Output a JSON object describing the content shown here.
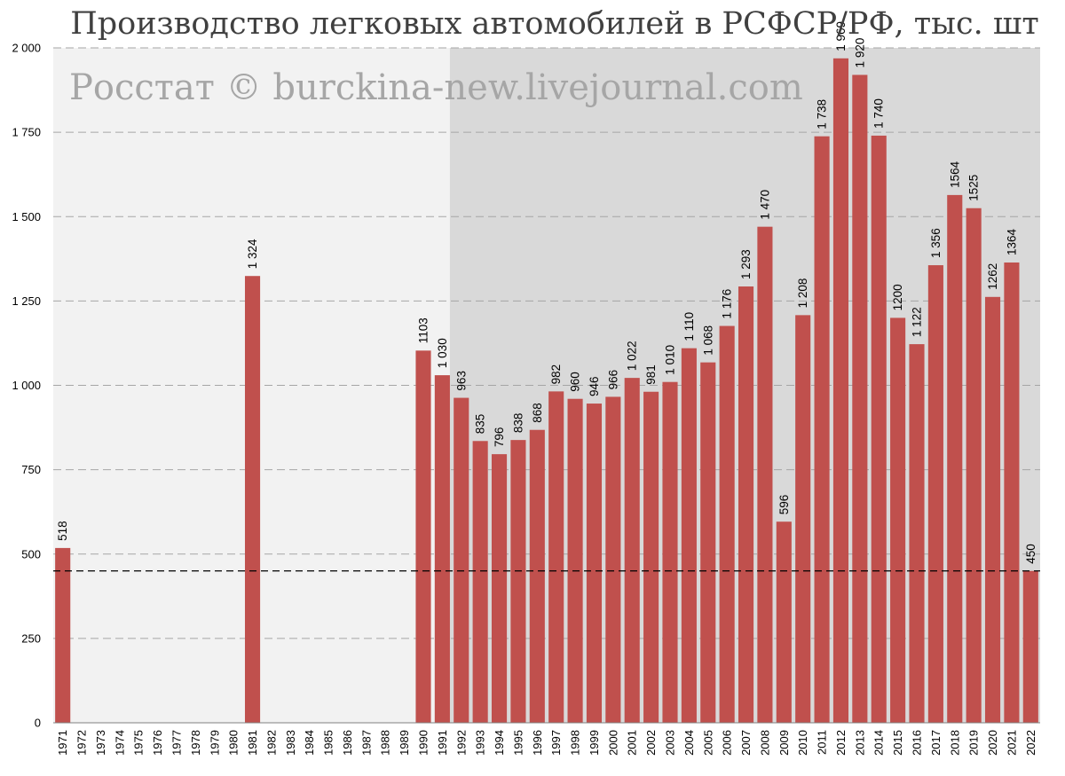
{
  "chart_data": {
    "type": "bar",
    "title": "Производство легковых автомобилей в РСФСР/РФ, тыс. шт",
    "watermark": "Росстат © burckina-new.livejournal.com",
    "xlabel": "",
    "ylabel": "",
    "ylim": [
      0,
      2000
    ],
    "yticks": [
      0,
      250,
      500,
      750,
      1000,
      1250,
      1500,
      1750,
      2000
    ],
    "ytick_labels": [
      "0",
      "250",
      "500",
      "750",
      "1 000",
      "1 250",
      "1 500",
      "1 750",
      "2 000"
    ],
    "categories": [
      "1971",
      "1972",
      "1973",
      "1974",
      "1975",
      "1976",
      "1977",
      "1978",
      "1979",
      "1980",
      "1981",
      "1982",
      "1983",
      "1984",
      "1985",
      "1986",
      "1987",
      "1988",
      "1989",
      "1990",
      "1991",
      "1992",
      "1993",
      "1994",
      "1995",
      "1996",
      "1997",
      "1998",
      "1999",
      "2000",
      "2001",
      "2002",
      "2003",
      "2004",
      "2005",
      "2006",
      "2007",
      "2008",
      "2009",
      "2010",
      "2011",
      "2012",
      "2013",
      "2014",
      "2015",
      "2016",
      "2017",
      "2018",
      "2019",
      "2020",
      "2021",
      "2022"
    ],
    "values": [
      518,
      null,
      null,
      null,
      null,
      null,
      null,
      null,
      null,
      null,
      1324,
      null,
      null,
      null,
      null,
      null,
      null,
      null,
      null,
      1103,
      1030,
      963,
      835,
      796,
      838,
      868,
      982,
      960,
      946,
      966,
      1022,
      981,
      1010,
      1110,
      1068,
      1176,
      1293,
      1470,
      596,
      1208,
      1738,
      1969,
      1920,
      1740,
      1200,
      1122,
      1356,
      1564,
      1525,
      1262,
      1364,
      450
    ],
    "data_labels": [
      "518",
      "",
      "",
      "",
      "",
      "",
      "",
      "",
      "",
      "",
      "1 324",
      "",
      "",
      "",
      "",
      "",
      "",
      "",
      "",
      "1103",
      "1 030",
      "963",
      "835",
      "796",
      "838",
      "868",
      "982",
      "960",
      "946",
      "966",
      "1 022",
      "981",
      "1 010",
      "1 110",
      "1 068",
      "1 176",
      "1 293",
      "1 470",
      "596",
      "1 208",
      "1 738",
      "1 969",
      "1 920",
      "1 740",
      "1200",
      "1 122",
      "1 356",
      "1564",
      "1525",
      "1262",
      "1364",
      "450"
    ],
    "reference_line": 450,
    "shaded_from_category": "1992",
    "grid": true,
    "colors": {
      "bar": "#c0504d",
      "background_light": "#f2f2f2",
      "background_dark": "#d9d9d9",
      "grid": "#a6a6a6",
      "reference_line": "#000000",
      "watermark": "#a6a6a6",
      "title": "#404040"
    }
  }
}
